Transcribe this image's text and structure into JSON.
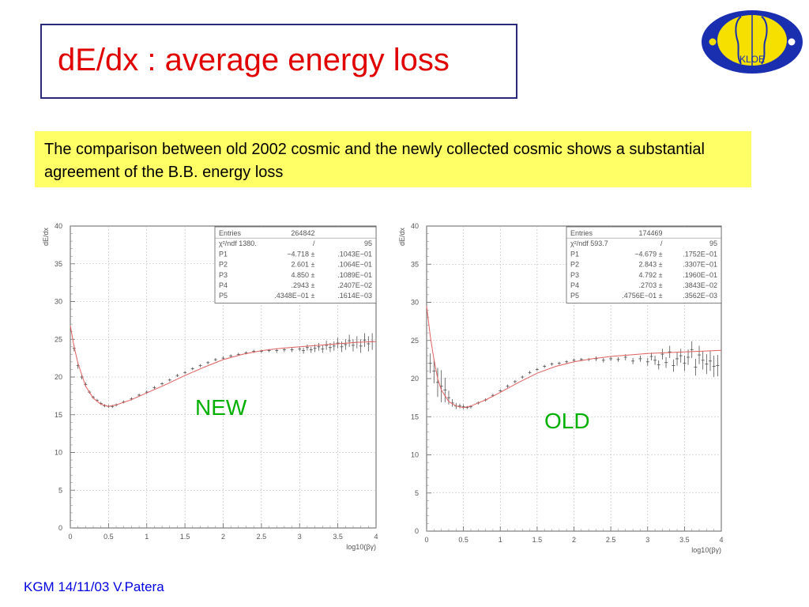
{
  "title": "dE/dx : average energy loss",
  "note": "The comparison between old 2002 cosmic and the newly collected cosmic shows a substantial agreement of the B.B. energy loss",
  "footer": "KGM 14/11/03 V.Patera",
  "logo": {
    "icon": "kloe-logo",
    "text": "KLOE"
  },
  "labels": {
    "new": "NEW",
    "old": "OLD"
  },
  "colors": {
    "title": "#e00000",
    "note_bg": "#ffff66",
    "fit": "#e06060",
    "data": "#505050",
    "label": "#00b000",
    "footer": "#0000e0"
  },
  "chart_data": [
    {
      "type": "scatter",
      "id": "new",
      "xlabel": "log10(βγ)",
      "ylabel": "dE/dx",
      "xlim": [
        0,
        4
      ],
      "ylim": [
        0,
        40
      ],
      "xticks": [
        "0",
        "0.5",
        "1",
        "1.5",
        "2",
        "2.5",
        "3",
        "3.5",
        "4"
      ],
      "yticks": [
        "0",
        "5",
        "10",
        "15",
        "20",
        "25",
        "30",
        "35",
        "40"
      ],
      "grid": true,
      "stats": [
        {
          "name": "Entries",
          "value": "264842",
          "error": ""
        },
        {
          "name": "χ²/ndf 1380.",
          "value": "/",
          "error": "95"
        },
        {
          "name": "P1",
          "value": "−4.718 ±",
          "error": ".1043E−01"
        },
        {
          "name": "P2",
          "value": "2.601 ±",
          "error": ".1064E−01"
        },
        {
          "name": "P3",
          "value": "4.850 ±",
          "error": ".1089E−01"
        },
        {
          "name": "P4",
          "value": ".2943 ±",
          "error": ".2407E−02"
        },
        {
          "name": "P5",
          "value": ".4348E−01 ±",
          "error": ".1614E−03"
        }
      ],
      "fit": {
        "x": [
          0.0,
          0.05,
          0.1,
          0.2,
          0.3,
          0.4,
          0.5,
          0.6,
          0.8,
          1.0,
          1.25,
          1.5,
          1.75,
          2.0,
          2.25,
          2.5,
          2.75,
          3.0,
          3.25,
          3.5,
          3.75,
          4.0
        ],
        "y": [
          26.8,
          24.0,
          21.8,
          18.8,
          17.2,
          16.4,
          16.1,
          16.3,
          17.0,
          17.9,
          19.0,
          20.2,
          21.3,
          22.3,
          23.0,
          23.5,
          23.8,
          24.0,
          24.2,
          24.4,
          24.6,
          24.7
        ]
      },
      "points": {
        "x": [
          0.05,
          0.1,
          0.15,
          0.2,
          0.25,
          0.3,
          0.35,
          0.4,
          0.45,
          0.5,
          0.55,
          0.6,
          0.7,
          0.8,
          0.9,
          1.0,
          1.1,
          1.2,
          1.3,
          1.4,
          1.5,
          1.6,
          1.7,
          1.8,
          1.9,
          2.0,
          2.1,
          2.2,
          2.3,
          2.4,
          2.5,
          2.6,
          2.7,
          2.8,
          2.9,
          3.0,
          3.05,
          3.1,
          3.15,
          3.2,
          3.25,
          3.3,
          3.35,
          3.4,
          3.45,
          3.5,
          3.55,
          3.6,
          3.65,
          3.7,
          3.75,
          3.8,
          3.85,
          3.9,
          3.95
        ],
        "y": [
          23.8,
          21.5,
          20.0,
          19.0,
          18.0,
          17.3,
          16.9,
          16.5,
          16.2,
          16.1,
          16.1,
          16.3,
          16.7,
          17.1,
          17.6,
          18.0,
          18.6,
          19.1,
          19.6,
          20.2,
          20.6,
          21.1,
          21.5,
          21.9,
          22.3,
          22.5,
          22.8,
          23.0,
          23.2,
          23.4,
          23.4,
          23.5,
          23.5,
          23.6,
          23.6,
          23.7,
          23.5,
          23.9,
          23.6,
          23.8,
          24.0,
          23.7,
          24.2,
          23.9,
          24.1,
          24.5,
          24.0,
          24.3,
          24.8,
          24.2,
          24.6,
          24.1,
          24.9,
          24.4,
          24.7
        ],
        "err": [
          0.3,
          0.3,
          0.2,
          0.2,
          0.1,
          0.1,
          0.1,
          0.1,
          0.1,
          0.1,
          0.1,
          0.1,
          0.1,
          0.1,
          0.1,
          0.1,
          0.1,
          0.1,
          0.1,
          0.1,
          0.1,
          0.1,
          0.1,
          0.1,
          0.1,
          0.1,
          0.1,
          0.1,
          0.1,
          0.1,
          0.1,
          0.1,
          0.2,
          0.2,
          0.2,
          0.2,
          0.3,
          0.3,
          0.3,
          0.4,
          0.4,
          0.4,
          0.5,
          0.5,
          0.5,
          0.6,
          0.6,
          0.6,
          0.7,
          0.7,
          0.7,
          0.8,
          0.8,
          0.9,
          1.0
        ]
      }
    },
    {
      "type": "scatter",
      "id": "old",
      "xlabel": "log10(βγ)",
      "ylabel": "dE/dx",
      "xlim": [
        0,
        4
      ],
      "ylim": [
        0,
        40
      ],
      "xticks": [
        "0",
        "0.5",
        "1",
        "1.5",
        "2",
        "2.5",
        "3",
        "3.5",
        "4"
      ],
      "yticks": [
        "0",
        "5",
        "10",
        "15",
        "20",
        "25",
        "30",
        "35",
        "40"
      ],
      "grid": true,
      "stats": [
        {
          "name": "Entries",
          "value": "174469",
          "error": ""
        },
        {
          "name": "χ²/ndf 593.7",
          "value": "/",
          "error": "95"
        },
        {
          "name": "P1",
          "value": "−4.679 ±",
          "error": ".1752E−01"
        },
        {
          "name": "P2",
          "value": "2.843 ±",
          "error": ".3307E−01"
        },
        {
          "name": "P3",
          "value": "4.792 ±",
          "error": ".1960E−01"
        },
        {
          "name": "P4",
          "value": ".2703 ±",
          "error": ".3843E−02"
        },
        {
          "name": "P5",
          "value": ".4756E−01 ±",
          "error": ".3562E−03"
        }
      ],
      "fit": {
        "x": [
          0.0,
          0.05,
          0.1,
          0.15,
          0.2,
          0.3,
          0.4,
          0.5,
          0.6,
          0.8,
          1.0,
          1.25,
          1.5,
          1.75,
          2.0,
          2.25,
          2.5,
          2.75,
          3.0,
          3.25,
          3.5,
          3.75,
          4.0
        ],
        "y": [
          29.5,
          25.5,
          22.5,
          20.0,
          18.5,
          17.0,
          16.4,
          16.2,
          16.4,
          17.2,
          18.2,
          19.5,
          20.7,
          21.6,
          22.2,
          22.6,
          22.9,
          23.1,
          23.3,
          23.4,
          23.5,
          23.6,
          23.7
        ]
      },
      "points": {
        "x": [
          0.05,
          0.1,
          0.15,
          0.2,
          0.25,
          0.3,
          0.35,
          0.4,
          0.45,
          0.5,
          0.55,
          0.6,
          0.7,
          0.8,
          0.9,
          1.0,
          1.1,
          1.2,
          1.3,
          1.4,
          1.5,
          1.6,
          1.7,
          1.8,
          1.9,
          2.0,
          2.1,
          2.2,
          2.3,
          2.4,
          2.5,
          2.6,
          2.7,
          2.8,
          2.9,
          3.0,
          3.05,
          3.1,
          3.15,
          3.2,
          3.25,
          3.3,
          3.35,
          3.4,
          3.45,
          3.5,
          3.55,
          3.6,
          3.65,
          3.7,
          3.75,
          3.8,
          3.85,
          3.9,
          3.95
        ],
        "y": [
          22.0,
          21.0,
          19.5,
          19.0,
          18.5,
          17.5,
          16.8,
          16.4,
          16.4,
          16.3,
          16.2,
          16.3,
          16.8,
          17.2,
          17.8,
          18.4,
          19.0,
          19.6,
          20.2,
          20.8,
          21.2,
          21.6,
          21.9,
          22.0,
          22.2,
          22.4,
          22.5,
          22.5,
          22.6,
          22.4,
          22.6,
          22.5,
          22.8,
          22.3,
          22.6,
          22.2,
          22.9,
          22.4,
          21.8,
          23.2,
          22.1,
          23.5,
          21.7,
          22.6,
          23.0,
          22.0,
          22.8,
          23.8,
          21.5,
          23.1,
          22.4,
          21.9,
          22.3,
          21.6,
          21.7
        ],
        "err": [
          1.2,
          1.5,
          1.8,
          2.0,
          1.5,
          0.8,
          0.4,
          0.3,
          0.2,
          0.2,
          0.1,
          0.1,
          0.1,
          0.1,
          0.1,
          0.1,
          0.1,
          0.1,
          0.1,
          0.1,
          0.1,
          0.1,
          0.1,
          0.1,
          0.1,
          0.1,
          0.1,
          0.1,
          0.2,
          0.2,
          0.2,
          0.2,
          0.3,
          0.3,
          0.3,
          0.4,
          0.4,
          0.5,
          0.5,
          0.6,
          0.6,
          0.7,
          0.7,
          0.8,
          0.8,
          0.9,
          0.9,
          1.0,
          1.0,
          1.1,
          1.1,
          1.2,
          1.2,
          1.3,
          1.3
        ]
      }
    }
  ]
}
